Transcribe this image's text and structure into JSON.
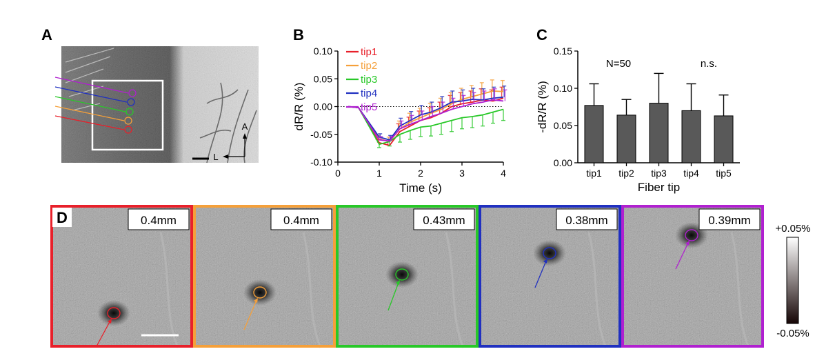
{
  "panels": {
    "A": {
      "letter": "A",
      "compass": {
        "anterior": "A",
        "lateral": "L"
      },
      "tip_colors": [
        "#e8202a",
        "#f5a03a",
        "#28c828",
        "#2030c0",
        "#b020d0"
      ]
    },
    "B": {
      "letter": "B"
    },
    "C": {
      "letter": "C",
      "annotation_n": "N=50",
      "annotation_ns": "n.s."
    },
    "D": {
      "letter": "D",
      "images": [
        {
          "label": "0.4mm",
          "color": "#e8202a"
        },
        {
          "label": "0.4mm",
          "color": "#f5a03a"
        },
        {
          "label": "0.43mm",
          "color": "#28c828"
        },
        {
          "label": "0.38mm",
          "color": "#2030c0"
        },
        {
          "label": "0.39mm",
          "color": "#b020d0"
        }
      ],
      "colorbar": {
        "max_label": "+0.05%",
        "min_label": "-0.05%"
      }
    }
  },
  "chart_data": [
    {
      "type": "line",
      "xlabel": "Time (s)",
      "ylabel": "dR/R (%)",
      "xlim": [
        0,
        4
      ],
      "ylim": [
        -0.1,
        0.1
      ],
      "xticks": [
        "0",
        "1",
        "2",
        "3",
        "4"
      ],
      "yticks": [
        "-0.10",
        "-0.05",
        "0.00",
        "0.05",
        "0.10"
      ],
      "baseline": 0,
      "legend_position": "top-left",
      "x": [
        0.25,
        0.5,
        1.0,
        1.25,
        1.5,
        1.75,
        2.0,
        2.25,
        2.5,
        2.75,
        3.0,
        3.25,
        3.5,
        3.75,
        4.0
      ],
      "series": [
        {
          "name": "tip1",
          "color": "#e8202a",
          "values": [
            0.0,
            -0.002,
            -0.065,
            -0.07,
            -0.045,
            -0.035,
            -0.025,
            -0.02,
            -0.012,
            0.0,
            0.005,
            0.008,
            0.012,
            0.01,
            0.015
          ],
          "errors": [
            0.003,
            0.003,
            0.006,
            0.008,
            0.014,
            0.016,
            0.017,
            0.018,
            0.02,
            0.02,
            0.02,
            0.02,
            0.02,
            0.02,
            0.02
          ]
        },
        {
          "name": "tip2",
          "color": "#f5a03a",
          "values": [
            0.0,
            -0.002,
            -0.058,
            -0.063,
            -0.04,
            -0.028,
            -0.02,
            -0.012,
            -0.005,
            0.005,
            0.013,
            0.018,
            0.023,
            0.028,
            0.027
          ],
          "errors": [
            0.003,
            0.003,
            0.006,
            0.008,
            0.014,
            0.016,
            0.017,
            0.018,
            0.02,
            0.02,
            0.02,
            0.02,
            0.02,
            0.02,
            0.02
          ]
        },
        {
          "name": "tip3",
          "color": "#28c828",
          "values": [
            0.0,
            -0.002,
            -0.068,
            -0.063,
            -0.05,
            -0.043,
            -0.037,
            -0.035,
            -0.03,
            -0.025,
            -0.02,
            -0.018,
            -0.015,
            -0.01,
            -0.005
          ],
          "errors": [
            0.003,
            0.003,
            0.006,
            0.008,
            0.014,
            0.016,
            0.017,
            0.018,
            0.02,
            0.02,
            0.02,
            0.02,
            0.02,
            0.02,
            0.02
          ]
        },
        {
          "name": "tip4",
          "color": "#2030c0",
          "values": [
            0.0,
            -0.002,
            -0.055,
            -0.06,
            -0.035,
            -0.025,
            -0.015,
            -0.01,
            -0.002,
            0.008,
            0.01,
            0.013,
            0.012,
            0.015,
            0.017
          ],
          "errors": [
            0.003,
            0.003,
            0.006,
            0.008,
            0.014,
            0.016,
            0.017,
            0.018,
            0.02,
            0.02,
            0.02,
            0.02,
            0.02,
            0.02,
            0.02
          ]
        },
        {
          "name": "tip5",
          "color": "#b020d0",
          "values": [
            0.0,
            -0.002,
            -0.06,
            -0.062,
            -0.04,
            -0.032,
            -0.025,
            -0.018,
            -0.012,
            -0.005,
            0.0,
            0.005,
            0.008,
            0.012,
            0.01
          ],
          "errors": [
            0.003,
            0.003,
            0.006,
            0.008,
            0.014,
            0.016,
            0.017,
            0.018,
            0.02,
            0.02,
            0.02,
            0.02,
            0.02,
            0.02,
            0.02
          ]
        }
      ]
    },
    {
      "type": "bar",
      "xlabel": "Fiber tip",
      "ylabel": "-dR/R (%)",
      "ylim": [
        0,
        0.15
      ],
      "yticks": [
        "0.00",
        "0.05",
        "0.10",
        "0.15"
      ],
      "categories": [
        "tip1",
        "tip2",
        "tip3",
        "tip4",
        "tip5"
      ],
      "values": [
        0.077,
        0.064,
        0.08,
        0.07,
        0.063
      ],
      "errors": [
        0.029,
        0.021,
        0.04,
        0.036,
        0.028
      ],
      "bar_color": "#595959"
    }
  ]
}
